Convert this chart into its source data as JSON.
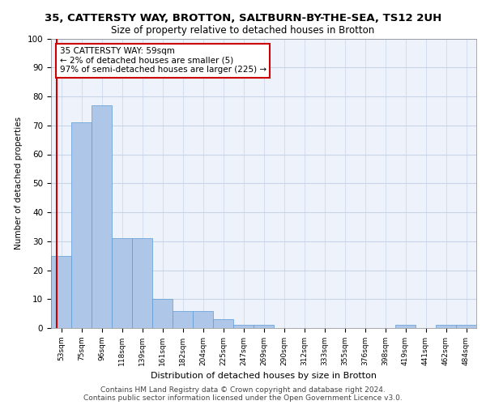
{
  "title1": "35, CATTERSTY WAY, BROTTON, SALTBURN-BY-THE-SEA, TS12 2UH",
  "title2": "Size of property relative to detached houses in Brotton",
  "xlabel": "Distribution of detached houses by size in Brotton",
  "ylabel": "Number of detached properties",
  "categories": [
    "53sqm",
    "75sqm",
    "96sqm",
    "118sqm",
    "139sqm",
    "161sqm",
    "182sqm",
    "204sqm",
    "225sqm",
    "247sqm",
    "269sqm",
    "290sqm",
    "312sqm",
    "333sqm",
    "355sqm",
    "376sqm",
    "398sqm",
    "419sqm",
    "441sqm",
    "462sqm",
    "484sqm"
  ],
  "values": [
    25,
    71,
    77,
    31,
    31,
    10,
    6,
    6,
    3,
    1,
    1,
    0,
    0,
    0,
    0,
    0,
    0,
    1,
    0,
    1,
    1
  ],
  "bar_color": "#aec6e8",
  "bar_edge_color": "#5b9bd5",
  "annotation_text": "35 CATTERSTY WAY: 59sqm\n← 2% of detached houses are smaller (5)\n97% of semi-detached houses are larger (225) →",
  "annotation_box_color": "#ffffff",
  "annotation_box_edge_color": "#cc0000",
  "property_line_color": "#cc0000",
  "ylim": [
    0,
    100
  ],
  "yticks": [
    0,
    10,
    20,
    30,
    40,
    50,
    60,
    70,
    80,
    90,
    100
  ],
  "footer": "Contains HM Land Registry data © Crown copyright and database right 2024.\nContains public sector information licensed under the Open Government Licence v3.0.",
  "bg_color": "#eef2fb",
  "grid_color": "#c8d4e8"
}
